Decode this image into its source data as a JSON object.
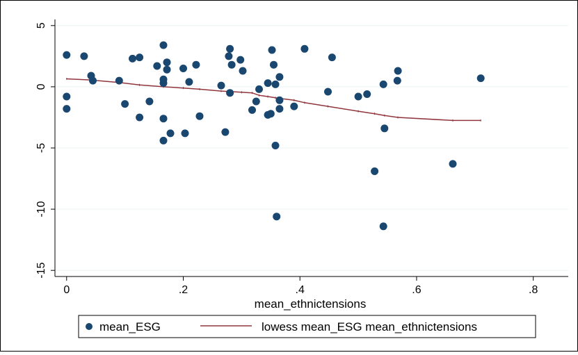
{
  "chart_data": {
    "type": "scatter",
    "title": "",
    "xlabel": "mean_ethnictensions",
    "ylabel": "",
    "xlim": [
      -0.02,
      0.86
    ],
    "ylim": [
      -15.5,
      5.5
    ],
    "xticks": [
      0,
      0.2,
      0.4,
      0.6,
      0.8
    ],
    "xtick_labels": [
      "0",
      ".2",
      ".4",
      ".6",
      ".8"
    ],
    "yticks": [
      5,
      0,
      -5,
      -10,
      -15
    ],
    "ytick_labels": [
      "5",
      "0",
      "-5",
      "-10",
      "-15"
    ],
    "grid": "horizontal",
    "legend_position": "bottom",
    "colors": {
      "scatter": "#1a476f",
      "line": "#90353b",
      "grid": "#eaf2f3",
      "axis": "#000000",
      "background": "#ffffff"
    },
    "series": [
      {
        "name": "mean_ESG",
        "kind": "scatter",
        "points": [
          [
            0.0,
            2.6
          ],
          [
            0.0,
            -0.8
          ],
          [
            0.0,
            -1.8
          ],
          [
            0.03,
            2.5
          ],
          [
            0.042,
            0.9
          ],
          [
            0.045,
            0.5
          ],
          [
            0.09,
            0.5
          ],
          [
            0.1,
            -1.4
          ],
          [
            0.113,
            2.3
          ],
          [
            0.125,
            2.4
          ],
          [
            0.125,
            -2.5
          ],
          [
            0.142,
            -1.2
          ],
          [
            0.155,
            1.7
          ],
          [
            0.166,
            3.4
          ],
          [
            0.166,
            0.6
          ],
          [
            0.166,
            0.3
          ],
          [
            0.166,
            -2.6
          ],
          [
            0.166,
            -4.4
          ],
          [
            0.172,
            2.0
          ],
          [
            0.172,
            1.4
          ],
          [
            0.178,
            -3.8
          ],
          [
            0.2,
            1.5
          ],
          [
            0.203,
            -3.8
          ],
          [
            0.21,
            0.4
          ],
          [
            0.222,
            1.8
          ],
          [
            0.228,
            -2.4
          ],
          [
            0.265,
            0.1
          ],
          [
            0.272,
            -3.7
          ],
          [
            0.278,
            2.5
          ],
          [
            0.28,
            3.1
          ],
          [
            0.28,
            -0.5
          ],
          [
            0.283,
            1.8
          ],
          [
            0.298,
            2.2
          ],
          [
            0.302,
            1.3
          ],
          [
            0.318,
            -1.9
          ],
          [
            0.325,
            -1.2
          ],
          [
            0.33,
            -0.2
          ],
          [
            0.345,
            0.3
          ],
          [
            0.345,
            -2.3
          ],
          [
            0.35,
            -2.2
          ],
          [
            0.352,
            3.0
          ],
          [
            0.355,
            1.8
          ],
          [
            0.358,
            0.2
          ],
          [
            0.358,
            -4.8
          ],
          [
            0.36,
            -10.6
          ],
          [
            0.365,
            0.8
          ],
          [
            0.365,
            -1.1
          ],
          [
            0.365,
            -1.8
          ],
          [
            0.39,
            -1.6
          ],
          [
            0.408,
            3.1
          ],
          [
            0.448,
            -0.4
          ],
          [
            0.455,
            2.4
          ],
          [
            0.5,
            -0.8
          ],
          [
            0.515,
            -0.6
          ],
          [
            0.528,
            -6.9
          ],
          [
            0.543,
            0.2
          ],
          [
            0.543,
            -11.4
          ],
          [
            0.545,
            -3.4
          ],
          [
            0.567,
            0.5
          ],
          [
            0.568,
            1.3
          ],
          [
            0.662,
            -6.3
          ],
          [
            0.71,
            0.7
          ]
        ]
      },
      {
        "name": "lowess mean_ESG mean_ethnictensions",
        "kind": "line",
        "points": [
          [
            0.0,
            0.65
          ],
          [
            0.042,
            0.55
          ],
          [
            0.09,
            0.35
          ],
          [
            0.125,
            0.15
          ],
          [
            0.166,
            0.0
          ],
          [
            0.2,
            -0.1
          ],
          [
            0.228,
            -0.2
          ],
          [
            0.265,
            -0.35
          ],
          [
            0.3,
            -0.45
          ],
          [
            0.318,
            -0.5
          ],
          [
            0.33,
            -0.7
          ],
          [
            0.345,
            -0.8
          ],
          [
            0.358,
            -0.9
          ],
          [
            0.365,
            -0.95
          ],
          [
            0.39,
            -1.1
          ],
          [
            0.408,
            -1.3
          ],
          [
            0.448,
            -1.6
          ],
          [
            0.5,
            -2.0
          ],
          [
            0.528,
            -2.2
          ],
          [
            0.545,
            -2.35
          ],
          [
            0.568,
            -2.5
          ],
          [
            0.662,
            -2.75
          ],
          [
            0.71,
            -2.75
          ]
        ]
      }
    ]
  }
}
